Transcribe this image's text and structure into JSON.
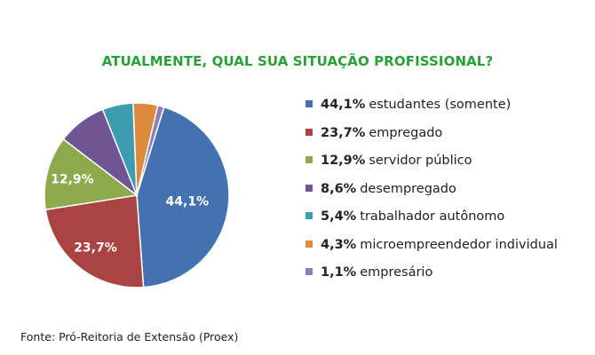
{
  "chart_data": {
    "type": "pie",
    "title": "ATUALMENTE, QUAL SUA SITUAÇÃO PROFISSIONAL?",
    "slices": [
      {
        "label": "estudantes (somente)",
        "value_label": "44,1%",
        "value": 44.1,
        "color": "#4472b0"
      },
      {
        "label": "empregado",
        "value_label": "23,7%",
        "value": 23.7,
        "color": "#a94442"
      },
      {
        "label": "servidor público",
        "value_label": "12,9%",
        "value": 12.9,
        "color": "#8caa4b"
      },
      {
        "label": "desempregado",
        "value_label": "8,6%",
        "value": 8.6,
        "color": "#6f5594"
      },
      {
        "label": "trabalhador autônomo",
        "value_label": "5,4%",
        "value": 5.4,
        "color": "#3d9cb0"
      },
      {
        "label": "microempreendedor individual",
        "value_label": "4,3%",
        "value": 4.3,
        "color": "#dc8a3e"
      },
      {
        "label": "empresário",
        "value_label": "1,1%",
        "value": 1.1,
        "color": "#8f7eb8"
      }
    ],
    "data_labels_shown_for": [
      "44,1%",
      "23,7%",
      "12,9%"
    ],
    "legend_position": "right"
  },
  "source": "Fonte: Pró-Reitoria de Extensão (Proex)"
}
